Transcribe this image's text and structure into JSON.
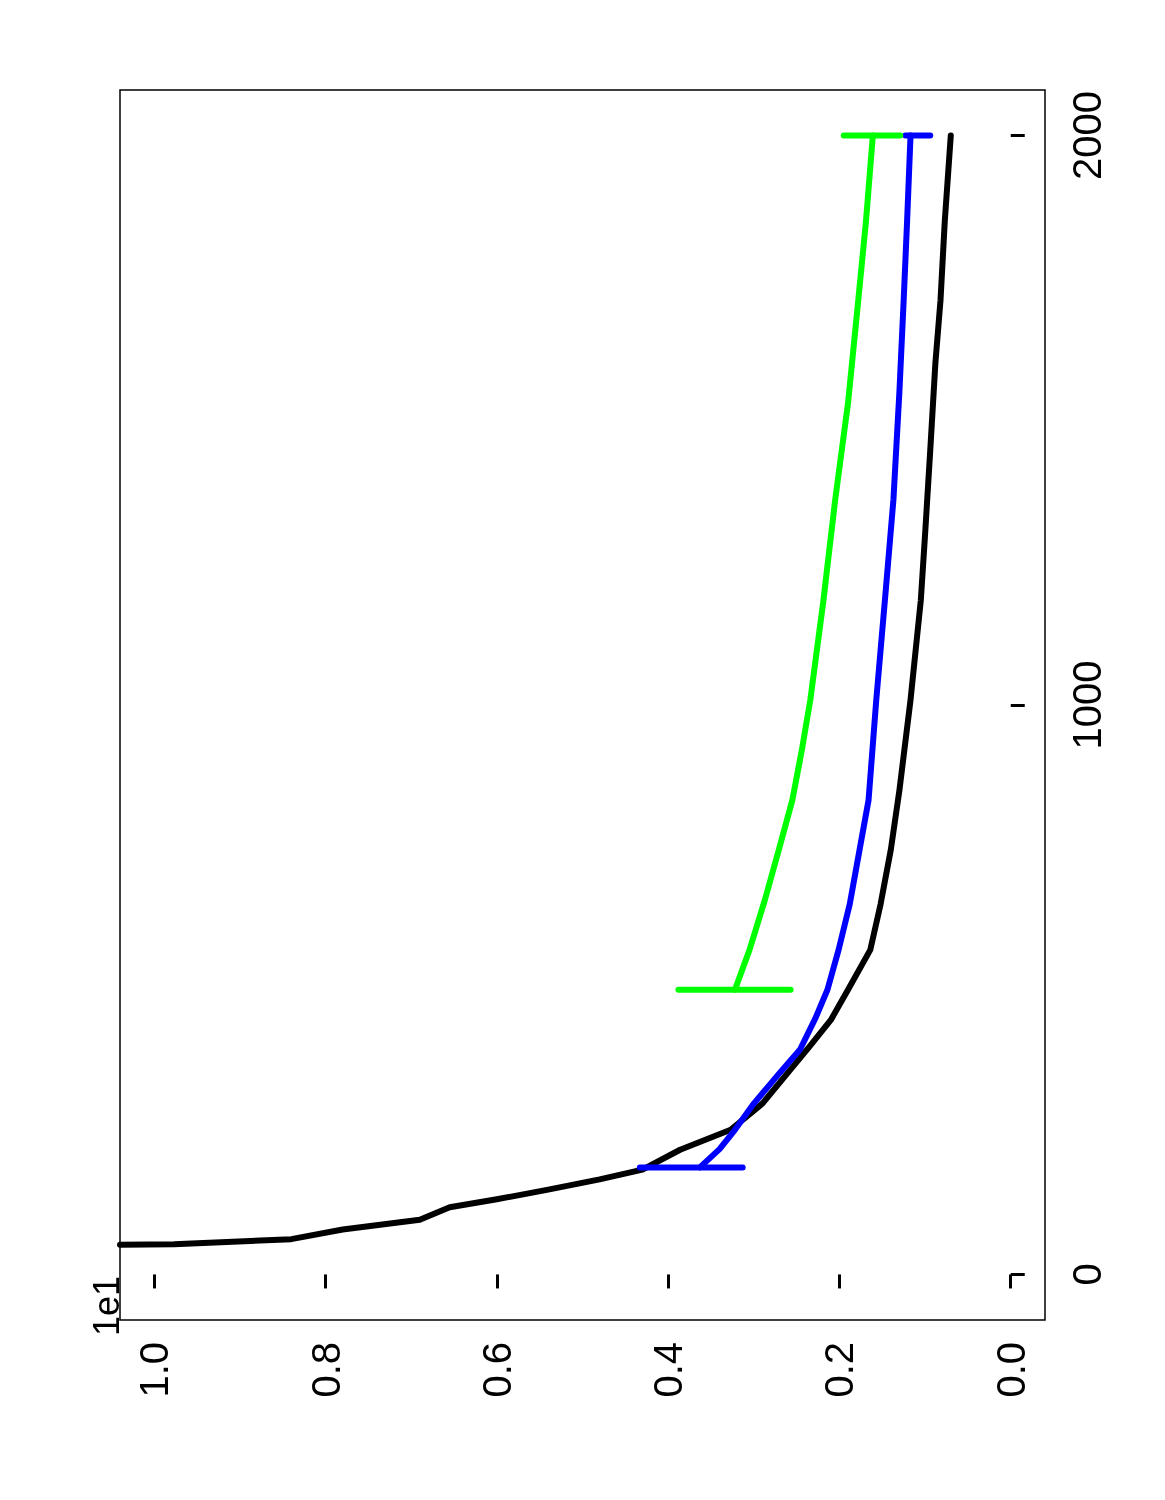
{
  "chart_data": {
    "type": "line",
    "orientation": "horizontal",
    "annotations": [
      "1e1"
    ],
    "xlim": [
      1.04,
      -0.04
    ],
    "xticks": [
      {
        "value": 1.0,
        "label": "1.0"
      },
      {
        "value": 0.8,
        "label": "0.8"
      },
      {
        "value": 0.6,
        "label": "0.6"
      },
      {
        "value": 0.4,
        "label": "0.4"
      },
      {
        "value": 0.2,
        "label": "0.2"
      },
      {
        "value": 0,
        "label": "0.0"
      }
    ],
    "ylim": [
      -80,
      2080
    ],
    "yticks": [
      0,
      1000,
      2000
    ],
    "marker": "none",
    "line_style": "solid",
    "series": [
      {
        "color": "#000000",
        "x": [
          52,
          53,
          62,
          79,
          96,
          118,
          132,
          149,
          167,
          184,
          219,
          254,
          300,
          360,
          400,
          447,
          500,
          570,
          650,
          746,
          850,
          1009,
          1184,
          1300,
          1447,
          1600,
          1711,
          1850,
          2000
        ],
        "values": [
          1.04,
          0.977,
          0.84,
          0.78,
          0.69,
          0.655,
          0.6,
          0.54,
          0.48,
          0.43,
          0.386,
          0.327,
          0.29,
          0.257,
          0.235,
          0.21,
          0.19,
          0.164,
          0.152,
          0.14,
          0.13,
          0.117,
          0.105,
          0.1,
          0.094,
          0.088,
          0.082,
          0.077,
          0.07
        ]
      },
      {
        "color": "#0000ff",
        "x": [
          188,
          220,
          254,
          300,
          350,
          395,
          450,
          500,
          570,
          650,
          750,
          833,
          1009,
          1200,
          1360,
          1550,
          1711,
          1850,
          2000
        ],
        "values": [
          0.363,
          0.34,
          0.322,
          0.3,
          0.272,
          0.246,
          0.228,
          0.214,
          0.201,
          0.188,
          0.176,
          0.166,
          0.157,
          0.146,
          0.137,
          0.13,
          0.125,
          0.121,
          0.117
        ]
      },
      {
        "color": "#00ff00",
        "x": [
          500,
          570,
          658,
          750,
          833,
          920,
          1009,
          1180,
          1360,
          1530,
          1711,
          1850,
          2000
        ],
        "values": [
          0.322,
          0.305,
          0.287,
          0.27,
          0.255,
          0.244,
          0.234,
          0.219,
          0.205,
          0.19,
          0.178,
          0.169,
          0.161
        ]
      },
      {
        "color": "#0000ff",
        "x": [
          188,
          188
        ],
        "values": [
          0.313,
          0.433
        ]
      },
      {
        "color": "#0000ff",
        "x": [
          2000,
          2000
        ],
        "values": [
          0.094,
          0.123
        ]
      },
      {
        "color": "#00ff00",
        "x": [
          500,
          500
        ],
        "values": [
          0.257,
          0.388
        ]
      },
      {
        "color": "#00ff00",
        "x": [
          2000,
          2000
        ],
        "values": [
          0.129,
          0.195
        ]
      }
    ]
  }
}
